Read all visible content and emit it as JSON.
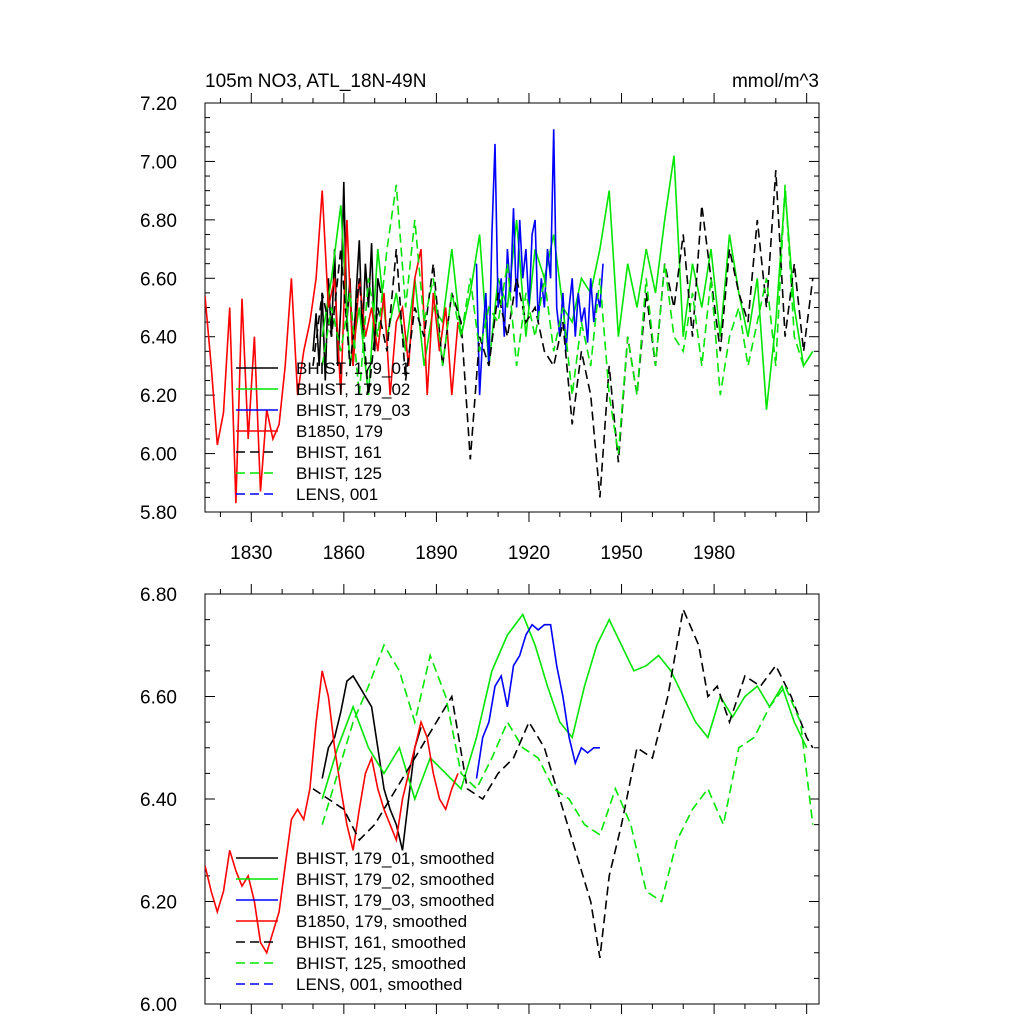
{
  "chart_data": [
    {
      "type": "line",
      "title": "105m NO3, ATL_18N-49N",
      "units": "mmol/m^3",
      "xlabel": "",
      "ylabel": "",
      "xlim": [
        1815,
        2014
      ],
      "ylim": [
        5.8,
        7.2
      ],
      "x_ticks": [
        "1830",
        "1860",
        "1890",
        "1920",
        "1950",
        "1980"
      ],
      "y_ticks": [
        "5.80",
        "6.00",
        "6.20",
        "6.40",
        "6.60",
        "6.80",
        "7.00",
        "7.20"
      ],
      "grid": false,
      "legend_position": "lower-left",
      "series": [
        {
          "name": "BHIST, 179_01",
          "color": "#000000",
          "dash": false,
          "x": [
            1850,
            1851,
            1852,
            1853,
            1854,
            1855,
            1856,
            1857,
            1858,
            1859,
            1860,
            1861,
            1862,
            1863,
            1864,
            1865,
            1866,
            1867,
            1868,
            1869,
            1870,
            1871,
            1872
          ],
          "y": [
            6.35,
            6.48,
            6.3,
            6.55,
            6.25,
            6.6,
            6.4,
            6.7,
            6.3,
            6.5,
            6.93,
            6.45,
            6.6,
            6.3,
            6.55,
            6.73,
            6.4,
            6.65,
            6.5,
            6.72,
            6.35,
            6.6,
            6.55
          ]
        },
        {
          "name": "BHIST, 179_02",
          "color": "#00e600",
          "dash": false,
          "x": [
            1853,
            1856,
            1859,
            1862,
            1865,
            1868,
            1871,
            1874,
            1877,
            1880,
            1883,
            1886,
            1889,
            1892,
            1895,
            1898,
            1901,
            1904,
            1907,
            1910,
            1913,
            1916,
            1919,
            1922,
            1925,
            1928,
            1931,
            1934,
            1937,
            1940,
            1943,
            1946,
            1949,
            1952,
            1955,
            1958,
            1961,
            1964,
            1967,
            1970,
            1973,
            1976,
            1979,
            1982,
            1985,
            1988,
            1991,
            1994,
            1997,
            2000,
            2003,
            2006,
            2009,
            2012
          ],
          "y": [
            6.4,
            6.6,
            6.85,
            6.3,
            6.5,
            6.2,
            6.7,
            6.4,
            6.55,
            6.35,
            6.6,
            6.3,
            6.5,
            6.45,
            6.7,
            6.4,
            6.55,
            6.75,
            6.3,
            6.6,
            6.5,
            6.8,
            6.4,
            6.7,
            6.6,
            6.75,
            6.5,
            6.45,
            6.6,
            6.55,
            6.7,
            6.9,
            6.4,
            6.65,
            6.5,
            6.7,
            6.55,
            6.8,
            7.02,
            6.4,
            6.65,
            6.5,
            6.7,
            6.4,
            6.75,
            6.55,
            6.4,
            6.6,
            6.15,
            6.45,
            6.9,
            6.5,
            6.3,
            6.35
          ]
        },
        {
          "name": "BHIST, 179_03",
          "color": "#0000ff",
          "dash": false,
          "x": [
            1903,
            1904,
            1905,
            1906,
            1907,
            1908,
            1909,
            1910,
            1911,
            1912,
            1913,
            1914,
            1915,
            1916,
            1917,
            1918,
            1919,
            1920,
            1921,
            1922,
            1923,
            1924,
            1925,
            1926,
            1927,
            1928,
            1929,
            1930,
            1931,
            1932,
            1933,
            1934,
            1935,
            1936,
            1937,
            1938,
            1939,
            1940,
            1941,
            1942,
            1943,
            1944
          ],
          "y": [
            6.65,
            6.2,
            6.4,
            6.55,
            6.3,
            6.75,
            7.06,
            6.5,
            6.6,
            6.4,
            6.7,
            6.55,
            6.84,
            6.5,
            6.8,
            6.6,
            6.7,
            6.5,
            6.75,
            6.8,
            6.45,
            6.6,
            6.5,
            6.7,
            6.6,
            7.11,
            6.5,
            6.4,
            6.55,
            6.35,
            6.5,
            6.6,
            6.4,
            6.55,
            6.45,
            6.5,
            6.38,
            6.6,
            6.45,
            6.55,
            6.5,
            6.65
          ]
        },
        {
          "name": "B1850, 179",
          "color": "#ff0000",
          "dash": false,
          "x": [
            1815,
            1817,
            1819,
            1821,
            1823,
            1825,
            1827,
            1829,
            1831,
            1833,
            1835,
            1837,
            1839,
            1841,
            1843,
            1845,
            1847,
            1849,
            1851,
            1853,
            1855,
            1857,
            1859,
            1861,
            1863,
            1865,
            1867,
            1869,
            1871,
            1873,
            1875,
            1877,
            1879,
            1881,
            1883,
            1885,
            1887,
            1889,
            1891,
            1893,
            1895,
            1897
          ],
          "y": [
            6.54,
            6.3,
            6.03,
            6.14,
            6.5,
            5.83,
            6.53,
            6.05,
            6.4,
            5.87,
            6.15,
            6.05,
            6.1,
            6.3,
            6.6,
            6.2,
            6.35,
            6.45,
            6.6,
            6.9,
            6.5,
            6.6,
            6.2,
            6.8,
            6.3,
            6.6,
            6.4,
            6.5,
            6.35,
            6.55,
            6.2,
            6.45,
            6.5,
            6.3,
            6.6,
            6.7,
            6.2,
            6.55,
            6.35,
            6.5,
            6.2,
            6.45
          ]
        },
        {
          "name": "BHIST, 161",
          "color": "#000000",
          "dash": true,
          "x": [
            1850,
            1853,
            1856,
            1859,
            1862,
            1865,
            1868,
            1871,
            1874,
            1877,
            1880,
            1883,
            1886,
            1889,
            1892,
            1895,
            1898,
            1901,
            1904,
            1907,
            1910,
            1913,
            1916,
            1919,
            1922,
            1925,
            1928,
            1931,
            1934,
            1937,
            1940,
            1943,
            1946,
            1949,
            1952,
            1955,
            1958,
            1961,
            1964,
            1967,
            1970,
            1973,
            1976,
            1979,
            1982,
            1985,
            1988,
            1991,
            1994,
            1997,
            2000,
            2003,
            2006,
            2009,
            2012
          ],
          "y": [
            6.3,
            6.55,
            6.4,
            6.7,
            6.3,
            6.6,
            6.2,
            6.5,
            6.35,
            6.7,
            6.25,
            6.5,
            6.4,
            6.65,
            6.3,
            6.55,
            6.45,
            5.98,
            6.4,
            6.3,
            6.55,
            6.4,
            6.6,
            6.45,
            6.5,
            6.35,
            6.3,
            6.45,
            6.1,
            6.35,
            6.2,
            5.85,
            6.3,
            5.97,
            6.4,
            6.2,
            6.55,
            6.3,
            6.65,
            6.5,
            6.75,
            6.4,
            6.85,
            6.6,
            6.35,
            6.7,
            6.55,
            6.45,
            6.8,
            6.5,
            6.97,
            6.4,
            6.65,
            6.35,
            6.6
          ]
        },
        {
          "name": "BHIST, 125",
          "color": "#00e600",
          "dash": true,
          "x": [
            1853,
            1856,
            1859,
            1862,
            1865,
            1868,
            1871,
            1874,
            1877,
            1880,
            1883,
            1886,
            1889,
            1892,
            1895,
            1898,
            1901,
            1904,
            1907,
            1910,
            1913,
            1916,
            1919,
            1922,
            1925,
            1928,
            1931,
            1934,
            1937,
            1940,
            1943,
            1946,
            1949,
            1952,
            1955,
            1958,
            1961,
            1964,
            1967,
            1970,
            1973,
            1976,
            1979,
            1982,
            1985,
            1988,
            1991,
            1994,
            1997,
            2000,
            2003,
            2006,
            2009,
            2012
          ],
          "y": [
            6.3,
            6.5,
            6.35,
            6.55,
            6.2,
            6.6,
            6.4,
            6.7,
            6.92,
            6.5,
            6.8,
            6.45,
            6.6,
            6.3,
            6.55,
            6.4,
            6.6,
            6.35,
            6.5,
            6.45,
            6.65,
            6.3,
            6.55,
            6.4,
            6.6,
            6.35,
            6.5,
            6.2,
            6.45,
            6.3,
            6.6,
            6.2,
            6.0,
            6.4,
            6.2,
            6.6,
            6.3,
            6.65,
            6.4,
            6.35,
            6.55,
            6.3,
            6.6,
            6.2,
            6.4,
            6.5,
            6.3,
            6.45,
            6.6,
            6.3,
            6.92,
            6.4,
            6.3,
            6.35
          ]
        },
        {
          "name": "LENS, 001",
          "color": "#0000ff",
          "dash": true,
          "x": [],
          "y": []
        }
      ]
    },
    {
      "type": "line",
      "title": "",
      "xlabel": "",
      "ylabel": "",
      "xlim": [
        1815,
        2014
      ],
      "ylim": [
        6.0,
        6.8
      ],
      "x_ticks": [],
      "y_ticks": [
        "6.00",
        "6.20",
        "6.40",
        "6.60",
        "6.80"
      ],
      "grid": false,
      "legend_position": "lower-left",
      "series": [
        {
          "name": "BHIST, 179_01, smoothed",
          "color": "#000000",
          "dash": false,
          "x": [
            1853,
            1855,
            1857,
            1859,
            1861,
            1863,
            1865,
            1867,
            1869,
            1871,
            1873,
            1875,
            1877,
            1879,
            1881,
            1883,
            1885
          ],
          "y": [
            6.44,
            6.5,
            6.52,
            6.57,
            6.63,
            6.64,
            6.62,
            6.6,
            6.58,
            6.5,
            6.42,
            6.38,
            6.35,
            6.3,
            6.4,
            6.5,
            6.54
          ]
        },
        {
          "name": "BHIST, 179_02, smoothed",
          "color": "#00e600",
          "dash": false,
          "x": [
            1853,
            1858,
            1863,
            1868,
            1873,
            1878,
            1883,
            1888,
            1893,
            1898,
            1903,
            1908,
            1913,
            1918,
            1922,
            1926,
            1930,
            1934,
            1938,
            1942,
            1946,
            1950,
            1954,
            1958,
            1962,
            1966,
            1970,
            1974,
            1978,
            1982,
            1986,
            1990,
            1994,
            1998,
            2002,
            2006,
            2010
          ],
          "y": [
            6.4,
            6.5,
            6.58,
            6.5,
            6.45,
            6.5,
            6.4,
            6.48,
            6.45,
            6.42,
            6.52,
            6.65,
            6.72,
            6.76,
            6.7,
            6.62,
            6.55,
            6.52,
            6.62,
            6.7,
            6.75,
            6.7,
            6.65,
            6.66,
            6.68,
            6.65,
            6.6,
            6.55,
            6.52,
            6.6,
            6.56,
            6.6,
            6.62,
            6.58,
            6.62,
            6.55,
            6.5
          ]
        },
        {
          "name": "BHIST, 179_03, smoothed",
          "color": "#0000ff",
          "dash": false,
          "x": [
            1903,
            1905,
            1907,
            1909,
            1911,
            1913,
            1915,
            1917,
            1919,
            1921,
            1923,
            1925,
            1927,
            1929,
            1931,
            1933,
            1935,
            1937,
            1939,
            1941,
            1943
          ],
          "y": [
            6.44,
            6.52,
            6.55,
            6.62,
            6.64,
            6.58,
            6.66,
            6.68,
            6.72,
            6.74,
            6.73,
            6.74,
            6.74,
            6.66,
            6.6,
            6.52,
            6.47,
            6.5,
            6.49,
            6.5,
            6.5
          ]
        },
        {
          "name": "B1850, 179, smoothed",
          "color": "#ff0000",
          "dash": false,
          "x": [
            1815,
            1817,
            1819,
            1821,
            1823,
            1825,
            1827,
            1829,
            1831,
            1833,
            1835,
            1837,
            1839,
            1841,
            1843,
            1845,
            1847,
            1849,
            1851,
            1853,
            1855,
            1857,
            1859,
            1861,
            1863,
            1865,
            1867,
            1869,
            1871,
            1873,
            1875,
            1877,
            1879,
            1881,
            1883,
            1885,
            1887,
            1889,
            1891,
            1893,
            1895,
            1897
          ],
          "y": [
            6.27,
            6.22,
            6.18,
            6.22,
            6.3,
            6.26,
            6.23,
            6.25,
            6.2,
            6.12,
            6.1,
            6.14,
            6.18,
            6.27,
            6.36,
            6.38,
            6.36,
            6.42,
            6.55,
            6.65,
            6.6,
            6.5,
            6.42,
            6.35,
            6.3,
            6.38,
            6.45,
            6.48,
            6.42,
            6.38,
            6.35,
            6.32,
            6.4,
            6.45,
            6.5,
            6.55,
            6.52,
            6.45,
            6.4,
            6.38,
            6.42,
            6.45
          ]
        },
        {
          "name": "BHIST, 161, smoothed",
          "color": "#000000",
          "dash": true,
          "x": [
            1850,
            1855,
            1860,
            1865,
            1870,
            1875,
            1880,
            1885,
            1890,
            1895,
            1900,
            1905,
            1910,
            1915,
            1920,
            1925,
            1930,
            1935,
            1940,
            1943,
            1946,
            1950,
            1955,
            1960,
            1965,
            1970,
            1975,
            1978,
            1981,
            1985,
            1990,
            1995,
            2000,
            2005,
            2010,
            2012
          ],
          "y": [
            6.42,
            6.4,
            6.38,
            6.32,
            6.35,
            6.4,
            6.45,
            6.5,
            6.55,
            6.6,
            6.42,
            6.4,
            6.45,
            6.48,
            6.55,
            6.5,
            6.4,
            6.3,
            6.2,
            6.09,
            6.25,
            6.35,
            6.5,
            6.48,
            6.6,
            6.77,
            6.7,
            6.6,
            6.62,
            6.55,
            6.64,
            6.62,
            6.66,
            6.6,
            6.52,
            6.5
          ]
        },
        {
          "name": "BHIST, 125, smoothed",
          "color": "#00e600",
          "dash": true,
          "x": [
            1853,
            1858,
            1863,
            1868,
            1873,
            1878,
            1883,
            1888,
            1893,
            1898,
            1903,
            1908,
            1913,
            1918,
            1923,
            1928,
            1933,
            1938,
            1943,
            1948,
            1953,
            1958,
            1963,
            1968,
            1973,
            1978,
            1983,
            1988,
            1993,
            1998,
            2003,
            2008,
            2012
          ],
          "y": [
            6.35,
            6.45,
            6.55,
            6.62,
            6.7,
            6.65,
            6.55,
            6.68,
            6.6,
            6.45,
            6.42,
            6.48,
            6.55,
            6.5,
            6.48,
            6.42,
            6.4,
            6.35,
            6.33,
            6.42,
            6.35,
            6.22,
            6.2,
            6.32,
            6.38,
            6.42,
            6.35,
            6.5,
            6.52,
            6.58,
            6.62,
            6.55,
            6.35
          ]
        },
        {
          "name": "LENS, 001, smoothed",
          "color": "#0000ff",
          "dash": true,
          "x": [],
          "y": []
        }
      ]
    }
  ]
}
